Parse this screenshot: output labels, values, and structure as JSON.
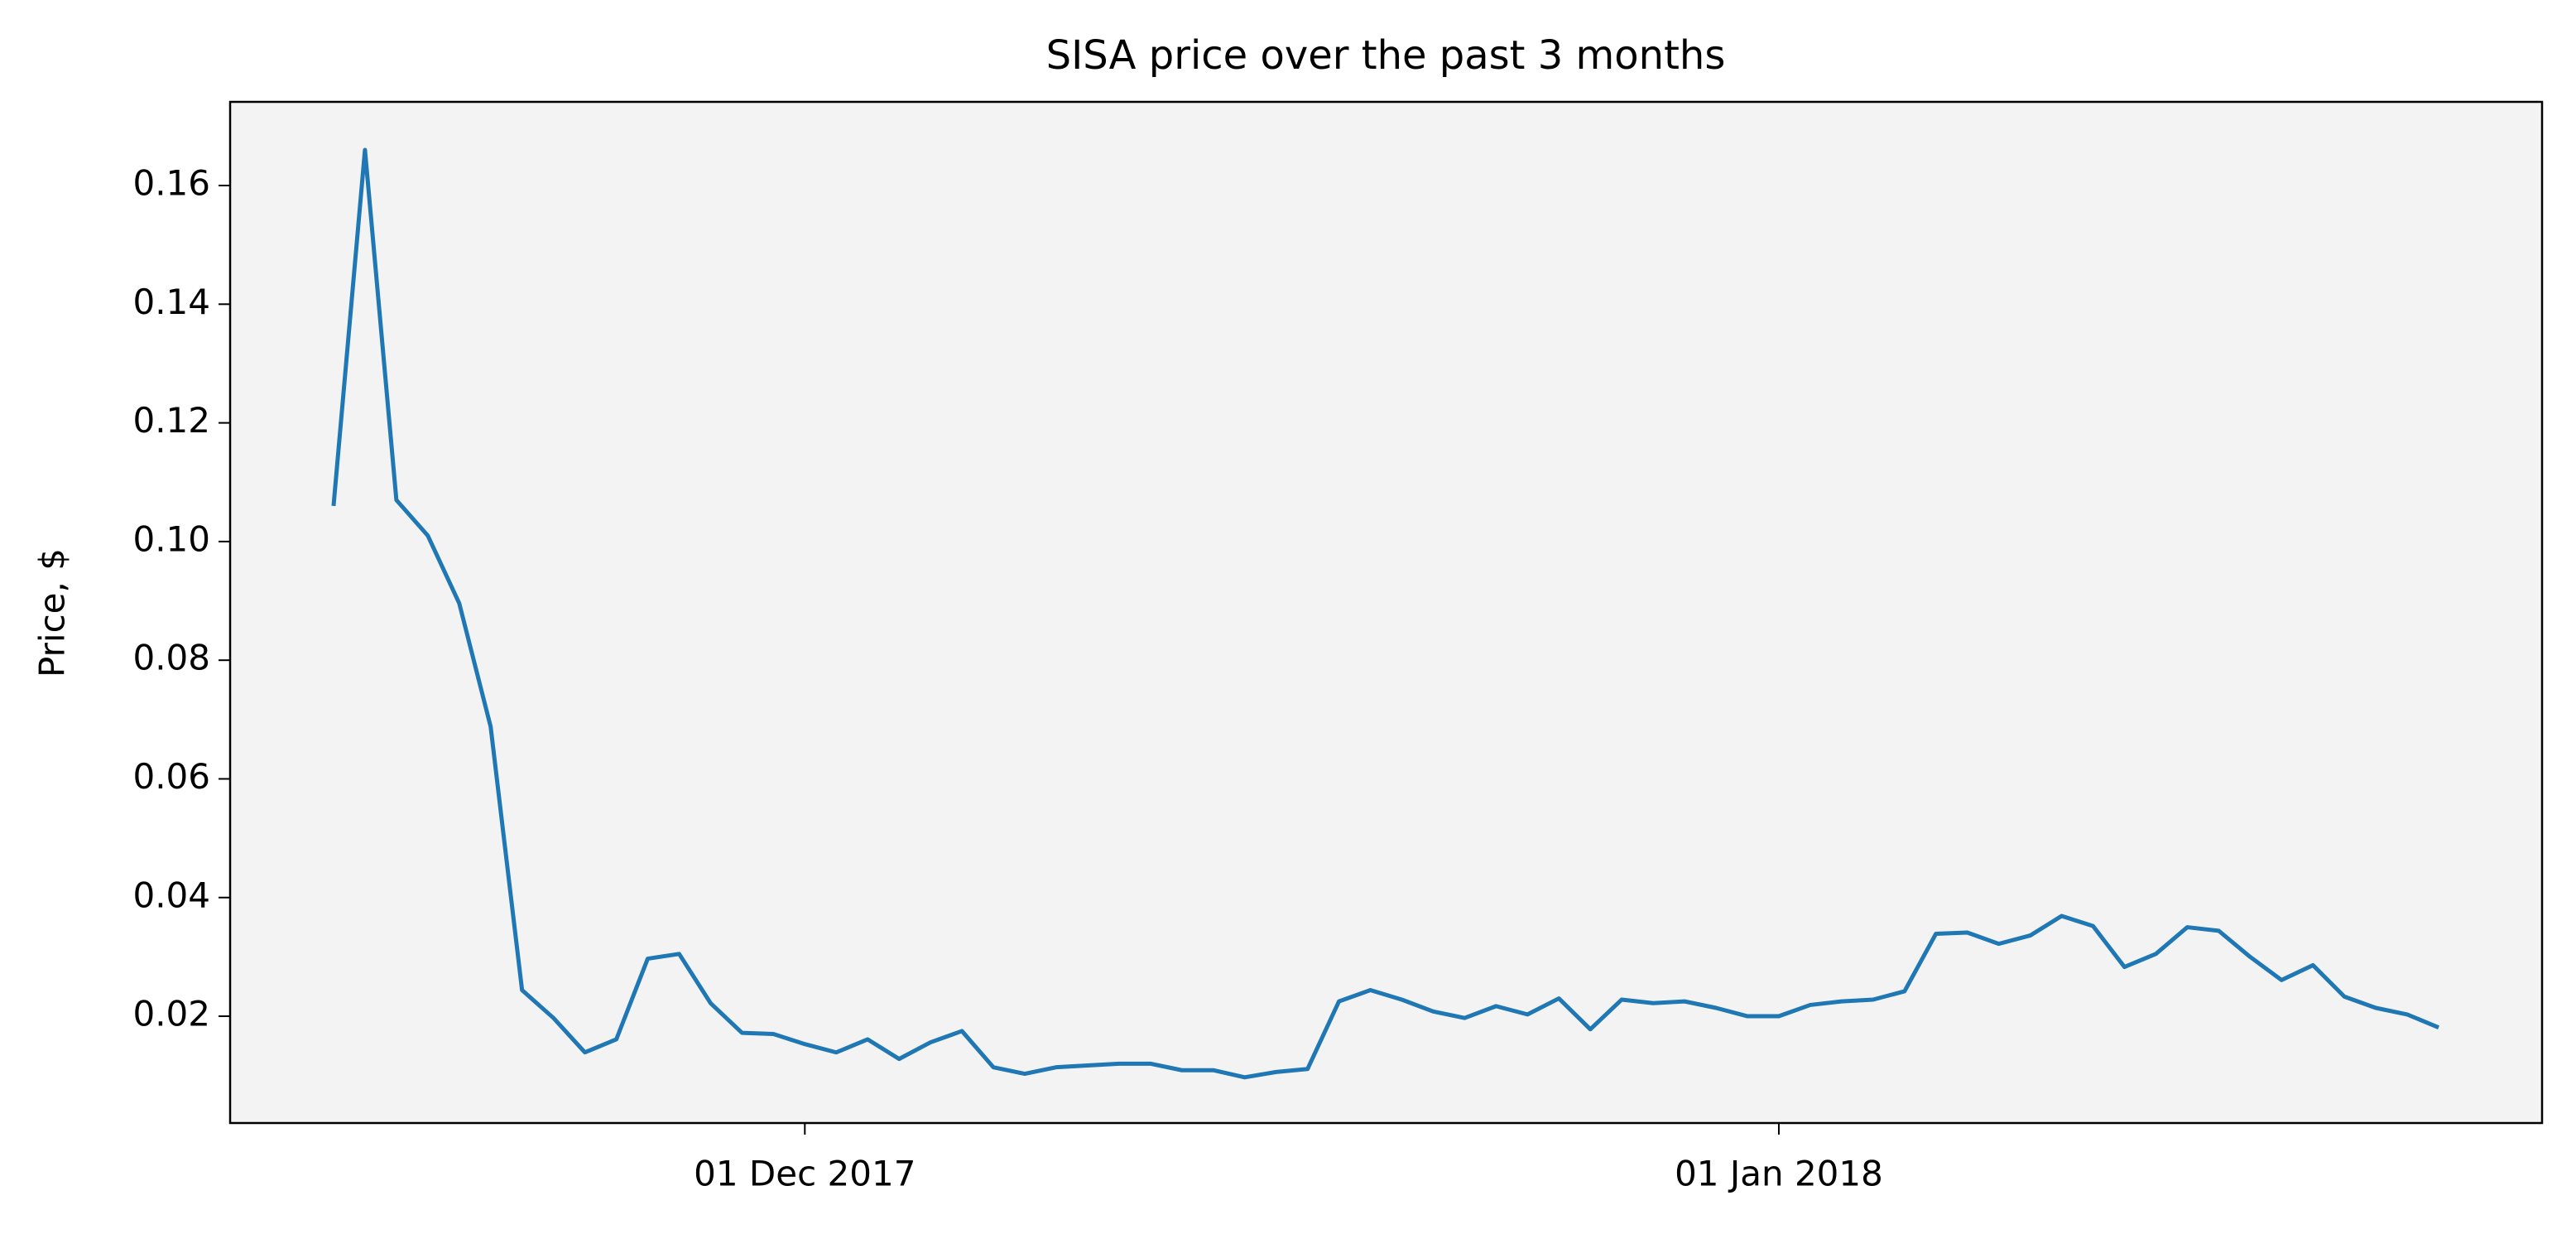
{
  "chart_data": {
    "type": "line",
    "title": "SISA price over the past 3 months",
    "y_label": "Price, $",
    "color": "#1f77b4",
    "background": "#f3f3f3",
    "x": [
      "2017-11-16",
      "2017-11-17",
      "2017-11-18",
      "2017-11-19",
      "2017-11-20",
      "2017-11-21",
      "2017-11-22",
      "2017-11-23",
      "2017-11-24",
      "2017-11-25",
      "2017-11-26",
      "2017-11-27",
      "2017-11-28",
      "2017-11-29",
      "2017-11-30",
      "2017-12-01",
      "2017-12-02",
      "2017-12-03",
      "2017-12-04",
      "2017-12-05",
      "2017-12-06",
      "2017-12-07",
      "2017-12-08",
      "2017-12-09",
      "2017-12-10",
      "2017-12-11",
      "2017-12-12",
      "2017-12-13",
      "2017-12-14",
      "2017-12-15",
      "2017-12-16",
      "2017-12-17",
      "2017-12-18",
      "2017-12-19",
      "2017-12-20",
      "2017-12-21",
      "2017-12-22",
      "2017-12-23",
      "2017-12-24",
      "2017-12-25",
      "2017-12-26",
      "2017-12-27",
      "2017-12-28",
      "2017-12-29",
      "2017-12-30",
      "2017-12-31",
      "2018-01-01",
      "2018-01-02",
      "2018-01-03",
      "2018-01-04",
      "2018-01-05",
      "2018-01-06",
      "2018-01-07",
      "2018-01-08",
      "2018-01-09",
      "2018-01-10",
      "2018-01-11",
      "2018-01-12",
      "2018-01-13",
      "2018-01-14",
      "2018-01-15",
      "2018-01-16",
      "2018-01-17",
      "2018-01-18",
      "2018-01-19",
      "2018-01-20",
      "2018-01-21",
      "2018-01-22"
    ],
    "values": [
      0.106,
      0.166,
      0.107,
      0.101,
      0.0896,
      0.0688,
      0.0244,
      0.0197,
      0.0139,
      0.0161,
      0.0297,
      0.0305,
      0.0222,
      0.0172,
      0.017,
      0.0153,
      0.0139,
      0.0161,
      0.0128,
      0.0156,
      0.0175,
      0.0114,
      0.0103,
      0.0114,
      0.0117,
      0.012,
      0.012,
      0.0109,
      0.0109,
      0.0097,
      0.0106,
      0.0111,
      0.0225,
      0.0244,
      0.0228,
      0.0208,
      0.0197,
      0.0217,
      0.0203,
      0.023,
      0.0178,
      0.0228,
      0.0222,
      0.0225,
      0.0214,
      0.02,
      0.02,
      0.0219,
      0.0225,
      0.0228,
      0.0242,
      0.0339,
      0.0341,
      0.0322,
      0.0336,
      0.0369,
      0.0352,
      0.0283,
      0.0305,
      0.035,
      0.0344,
      0.03,
      0.0261,
      0.0286,
      0.0233,
      0.0214,
      0.0203,
      0.0181
    ],
    "xlim": [
      "2017-11-12T17:00",
      "2018-01-25T07:00"
    ],
    "xticks": [
      {
        "value": "2017-12-01",
        "label": "01 Dec 2017"
      },
      {
        "value": "2018-01-01",
        "label": "01 Jan 2018"
      }
    ],
    "ylim": [
      0.002,
      0.1741
    ],
    "yticks": [
      {
        "value": 0.02,
        "label": "0.02"
      },
      {
        "value": 0.04,
        "label": "0.04"
      },
      {
        "value": 0.06,
        "label": "0.06"
      },
      {
        "value": 0.08,
        "label": "0.08"
      },
      {
        "value": 0.1,
        "label": "0.10"
      },
      {
        "value": 0.12,
        "label": "0.12"
      },
      {
        "value": 0.14,
        "label": "0.14"
      },
      {
        "value": 0.16,
        "label": "0.16"
      }
    ]
  }
}
